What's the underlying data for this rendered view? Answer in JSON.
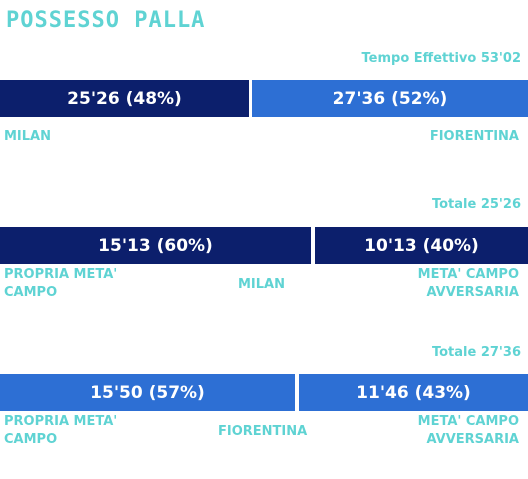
{
  "title": "POSSESSO PALLA",
  "section1": {
    "total": "Tempo Effettivo 53'02",
    "left_value": "25'26 (48%)",
    "right_value": "27'36 (52%)",
    "left_team": "MILAN",
    "right_team": "FIORENTINA"
  },
  "section2": {
    "total": "Totale 25'26",
    "left_value": "15'13 (60%)",
    "right_value": "10'13 (40%)",
    "left_label_1": "PROPRIA META'",
    "left_label_2": "CAMPO",
    "team": "MILAN",
    "right_label_1": "META' CAMPO",
    "right_label_2": "AVVERSARIA"
  },
  "section3": {
    "total": "Totale 27'36",
    "left_value": "15'50 (57%)",
    "right_value": "11'46 (43%)",
    "left_label_1": "PROPRIA META'",
    "left_label_2": "CAMPO",
    "team": "FIORENTINA",
    "right_label_1": "META' CAMPO",
    "right_label_2": "AVVERSARIA"
  },
  "colors": {
    "accent": "#5fd3d3",
    "milan_bar": "#0c1f6c",
    "fiorentina_bar": "#2d6fd4"
  }
}
